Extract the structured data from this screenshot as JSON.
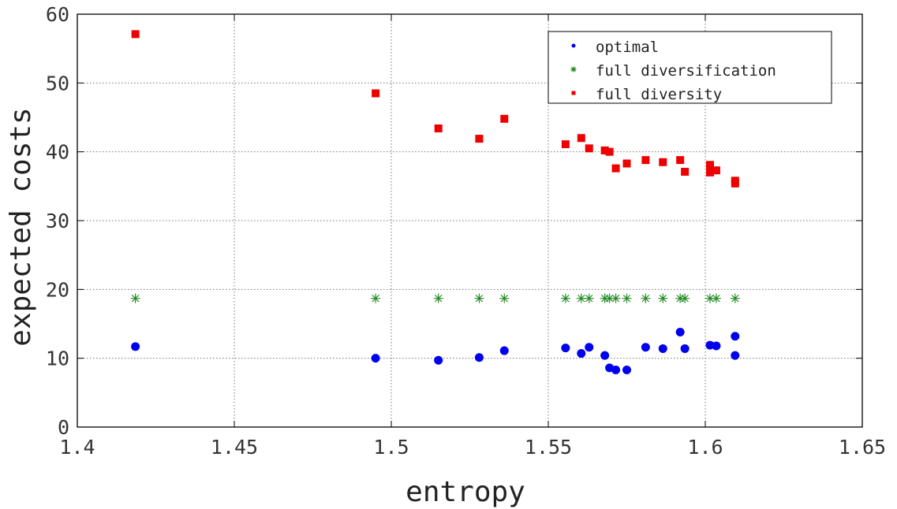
{
  "chart_data": {
    "type": "scatter",
    "title": "",
    "xlabel": "entropy",
    "ylabel": "expected costs",
    "xlim": [
      1.4,
      1.65
    ],
    "ylim": [
      0,
      60
    ],
    "xticks": [
      1.4,
      1.45,
      1.5,
      1.55,
      1.6,
      1.65
    ],
    "xtick_labels": [
      "1.4",
      "1.45",
      "1.5",
      "1.55",
      "1.6",
      "1.65"
    ],
    "yticks": [
      0,
      10,
      20,
      30,
      40,
      50,
      60
    ],
    "ytick_labels": [
      "0",
      "10",
      "20",
      "30",
      "40",
      "50",
      "60"
    ],
    "grid": true,
    "legend_position": "top-right",
    "colors": {
      "optimal": "#0000ee",
      "full_diversification": "#228b22",
      "full_diversity": "#ee0000"
    },
    "series": [
      {
        "name": "optimal",
        "marker": "circle",
        "color": "#0000ee",
        "x": [
          1.4185,
          1.495,
          1.515,
          1.528,
          1.536,
          1.5555,
          1.5605,
          1.563,
          1.568,
          1.5695,
          1.5715,
          1.575,
          1.581,
          1.5865,
          1.592,
          1.5935,
          1.6015,
          1.6035,
          1.6095,
          1.6095
        ],
        "y": [
          11.7,
          10.0,
          9.7,
          10.1,
          11.1,
          11.5,
          10.7,
          11.6,
          10.4,
          8.6,
          8.3,
          8.3,
          11.6,
          11.4,
          13.8,
          11.4,
          11.9,
          11.8,
          13.2,
          10.4
        ]
      },
      {
        "name": "full diversification",
        "marker": "star",
        "color": "#228b22",
        "x": [
          1.4185,
          1.495,
          1.515,
          1.528,
          1.536,
          1.5555,
          1.5605,
          1.563,
          1.568,
          1.5695,
          1.5715,
          1.575,
          1.581,
          1.5865,
          1.592,
          1.5935,
          1.6015,
          1.6035,
          1.6095
        ],
        "y": [
          18.7,
          18.7,
          18.7,
          18.7,
          18.7,
          18.7,
          18.7,
          18.7,
          18.7,
          18.7,
          18.7,
          18.7,
          18.7,
          18.7,
          18.7,
          18.7,
          18.7,
          18.7,
          18.7
        ]
      },
      {
        "name": "full diversity",
        "marker": "square",
        "color": "#ee0000",
        "x": [
          1.4185,
          1.495,
          1.515,
          1.528,
          1.536,
          1.5555,
          1.5605,
          1.563,
          1.568,
          1.5695,
          1.5715,
          1.575,
          1.581,
          1.5865,
          1.592,
          1.5935,
          1.6015,
          1.6015,
          1.6035,
          1.6095,
          1.6095
        ],
        "y": [
          57.1,
          48.5,
          43.4,
          41.9,
          44.8,
          41.1,
          42.0,
          40.5,
          40.2,
          40.0,
          37.6,
          38.3,
          38.8,
          38.5,
          38.8,
          37.1,
          38.1,
          37.0,
          37.3,
          35.8,
          35.4
        ]
      }
    ]
  }
}
